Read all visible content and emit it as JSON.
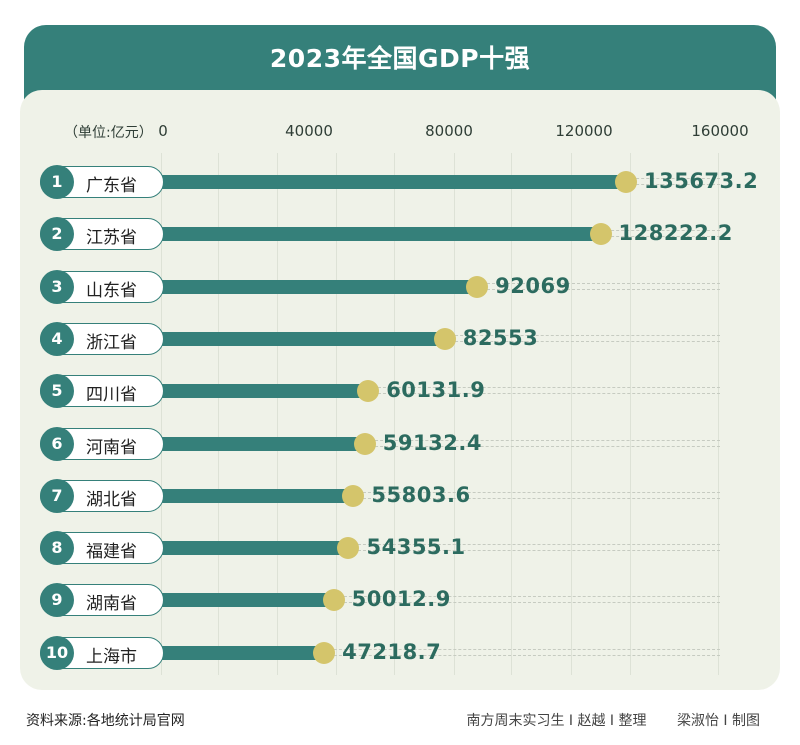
{
  "title": "2023年全国GDP十强",
  "unit_label": "（单位:亿元）",
  "axis": {
    "ticks": [
      "0",
      "40000",
      "80000",
      "120000",
      "160000"
    ]
  },
  "rows": [
    {
      "rank": "1",
      "name": "广东省",
      "value": "135673.2"
    },
    {
      "rank": "2",
      "name": "江苏省",
      "value": "128222.2"
    },
    {
      "rank": "3",
      "name": "山东省",
      "value": "92069"
    },
    {
      "rank": "4",
      "name": "浙江省",
      "value": "82553"
    },
    {
      "rank": "5",
      "name": "四川省",
      "value": "60131.9"
    },
    {
      "rank": "6",
      "name": "河南省",
      "value": "59132.4"
    },
    {
      "rank": "7",
      "name": "湖北省",
      "value": "55803.6"
    },
    {
      "rank": "8",
      "name": "福建省",
      "value": "54355.1"
    },
    {
      "rank": "9",
      "name": "湖南省",
      "value": "50012.9"
    },
    {
      "rank": "10",
      "name": "上海市",
      "value": "47218.7"
    }
  ],
  "footer": {
    "source": "资料来源:各地统计局官网",
    "credit_1": "南方周末实习生 I 赵越 I 整理",
    "credit_2": "梁淑怡 I 制图"
  },
  "colors": {
    "primary": "#35807a",
    "marker": "#d4c56b",
    "panel": "#eff2e8",
    "value_text": "#2c6b5f"
  },
  "chart_data": {
    "type": "bar",
    "orientation": "horizontal",
    "title": "2023年全国GDP十强",
    "xlabel": "单位:亿元",
    "ylabel": "",
    "xlim": [
      0,
      160000
    ],
    "x_ticks": [
      0,
      40000,
      80000,
      120000,
      160000
    ],
    "categories": [
      "广东省",
      "江苏省",
      "山东省",
      "浙江省",
      "四川省",
      "河南省",
      "湖北省",
      "福建省",
      "湖南省",
      "上海市"
    ],
    "values": [
      135673.2,
      128222.2,
      92069,
      82553,
      60131.9,
      59132.4,
      55803.6,
      54355.1,
      50012.9,
      47218.7
    ],
    "grid": true,
    "legend": null
  }
}
